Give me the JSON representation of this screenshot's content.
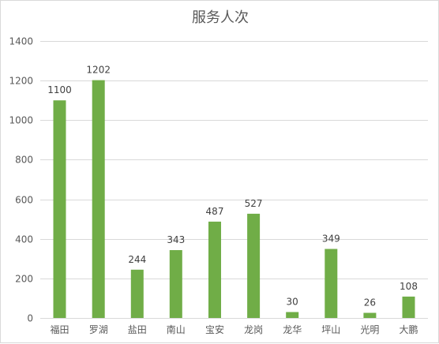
{
  "chart_data": {
    "type": "bar",
    "title": "服务人次",
    "categories": [
      "福田",
      "罗湖",
      "盐田",
      "南山",
      "宝安",
      "龙岗",
      "龙华",
      "坪山",
      "光明",
      "大鹏"
    ],
    "values": [
      1100,
      1202,
      244,
      343,
      487,
      527,
      30,
      349,
      26,
      108
    ],
    "ylim": [
      0,
      1400
    ],
    "yticks": [
      0,
      200,
      400,
      600,
      800,
      1000,
      1200,
      1400
    ],
    "grid": true,
    "data_labels": true,
    "bar_color": "#70ad47",
    "grid_color": "#d9d9d9"
  }
}
